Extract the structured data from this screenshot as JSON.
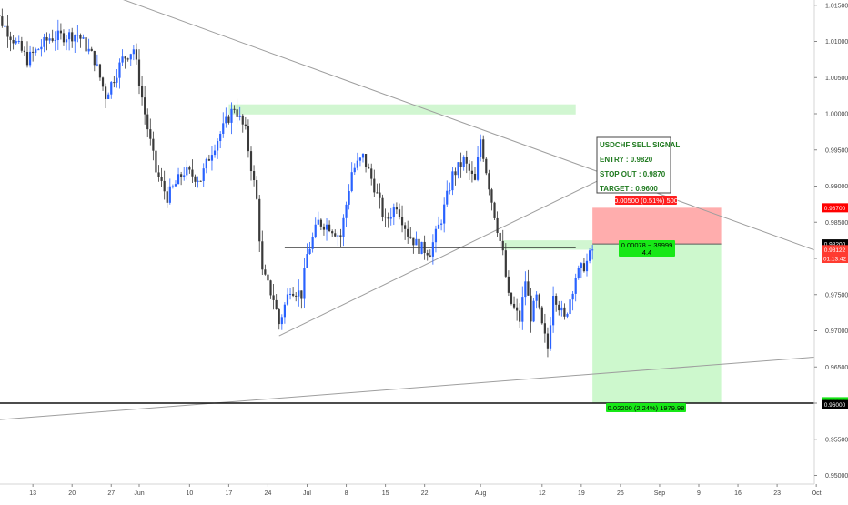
{
  "chart_data": {
    "type": "candlestick",
    "symbol": "USDCHF",
    "x_tick_labels": [
      "13",
      "20",
      "27",
      "Jun",
      "10",
      "17",
      "24",
      "Jul",
      "8",
      "15",
      "22",
      "Aug",
      "12",
      "19",
      "26",
      "Sep",
      "9",
      "16",
      "23",
      "Oct"
    ],
    "x_tick_days": [
      13,
      20,
      27,
      32,
      41,
      48,
      55,
      62,
      69,
      76,
      83,
      93,
      104,
      111,
      118,
      125,
      132,
      139,
      146,
      153
    ],
    "y_tick_labels": [
      "1.01500",
      "1.01000",
      "1.00500",
      "1.00000",
      "0.99500",
      "0.99000",
      "0.98500",
      "0.98000",
      "0.97500",
      "0.97000",
      "0.96500",
      "0.96000",
      "0.95500",
      "0.95000"
    ],
    "y_ticks": [
      1.015,
      1.01,
      1.005,
      1.0,
      0.995,
      0.99,
      0.985,
      0.98,
      0.975,
      0.97,
      0.965,
      0.96,
      0.955,
      0.95
    ],
    "ylim": [
      0.9488,
      1.0155
    ],
    "grid": false,
    "price_path": [
      {
        "day": 5,
        "price": 1.0155
      },
      {
        "day": 8,
        "price": 1.012
      },
      {
        "day": 12,
        "price": 1.0075
      },
      {
        "day": 16,
        "price": 1.0105
      },
      {
        "day": 21,
        "price": 1.011
      },
      {
        "day": 24,
        "price": 1.0075
      },
      {
        "day": 26,
        "price": 1.0025
      },
      {
        "day": 29,
        "price": 1.0075
      },
      {
        "day": 31,
        "price": 1.009
      },
      {
        "day": 33,
        "price": 1.0
      },
      {
        "day": 35,
        "price": 0.992
      },
      {
        "day": 37,
        "price": 0.9885
      },
      {
        "day": 40,
        "price": 0.992
      },
      {
        "day": 43,
        "price": 0.991
      },
      {
        "day": 45,
        "price": 0.995
      },
      {
        "day": 48,
        "price": 0.9995
      },
      {
        "day": 49,
        "price": 1.001
      },
      {
        "day": 51,
        "price": 0.9975
      },
      {
        "day": 53,
        "price": 0.988
      },
      {
        "day": 54,
        "price": 0.978
      },
      {
        "day": 56,
        "price": 0.9745
      },
      {
        "day": 57,
        "price": 0.971
      },
      {
        "day": 59,
        "price": 0.976
      },
      {
        "day": 61,
        "price": 0.975
      },
      {
        "day": 62,
        "price": 0.9805
      },
      {
        "day": 64,
        "price": 0.985
      },
      {
        "day": 66,
        "price": 0.9845
      },
      {
        "day": 68,
        "price": 0.983
      },
      {
        "day": 70,
        "price": 0.992
      },
      {
        "day": 72,
        "price": 0.994
      },
      {
        "day": 74,
        "price": 0.99
      },
      {
        "day": 76,
        "price": 0.985
      },
      {
        "day": 78,
        "price": 0.9875
      },
      {
        "day": 80,
        "price": 0.9835
      },
      {
        "day": 82,
        "price": 0.9815
      },
      {
        "day": 84,
        "price": 0.981
      },
      {
        "day": 86,
        "price": 0.9855
      },
      {
        "day": 88,
        "price": 0.9915
      },
      {
        "day": 90,
        "price": 0.9935
      },
      {
        "day": 92,
        "price": 0.9905
      },
      {
        "day": 93,
        "price": 0.9965
      },
      {
        "day": 95,
        "price": 0.988
      },
      {
        "day": 97,
        "price": 0.9805
      },
      {
        "day": 98,
        "price": 0.9745
      },
      {
        "day": 100,
        "price": 0.9715
      },
      {
        "day": 101,
        "price": 0.977
      },
      {
        "day": 102,
        "price": 0.972
      },
      {
        "day": 103,
        "price": 0.9745
      },
      {
        "day": 104,
        "price": 0.9705
      },
      {
        "day": 105,
        "price": 0.9675
      },
      {
        "day": 106,
        "price": 0.9755
      },
      {
        "day": 107,
        "price": 0.9735
      },
      {
        "day": 108,
        "price": 0.9715
      },
      {
        "day": 110,
        "price": 0.9775
      },
      {
        "day": 112,
        "price": 0.9795
      },
      {
        "day": 113,
        "price": 0.9812
      }
    ],
    "trendlines": [
      {
        "from": {
          "day": 23,
          "price": 1.0175
        },
        "to": {
          "day": 155,
          "price": 0.9805
        }
      },
      {
        "from": {
          "day": 57,
          "price": 0.9693
        },
        "to": {
          "day": 116,
          "price": 0.9915
        }
      },
      {
        "from": {
          "day": 0,
          "price": 0.9573
        },
        "to": {
          "day": 155,
          "price": 0.9665
        }
      }
    ],
    "horizontal_lines": [
      {
        "price": 0.9815,
        "from_day": 58,
        "to_day": 110
      },
      {
        "price": 0.96,
        "from_day": 0,
        "to_day": 155
      }
    ],
    "resistance_zones": [
      {
        "from_day": 48,
        "to_day": 110,
        "price_low": 0.9999,
        "price_high": 1.0013
      },
      {
        "from_day": 97,
        "to_day": 113,
        "price_low": 0.9812,
        "price_high": 0.9825
      }
    ],
    "position": {
      "side": "short",
      "entry": 0.982,
      "stop": 0.987,
      "target": 0.96,
      "from_day": 113,
      "to_day": 136,
      "risk_label": "0.00500 (0.51%) 500",
      "current_label_line1": "0.00078 ~ 39999",
      "current_label_line2": "4.4",
      "reward_label": "0.02200 (2.24%) 1979.98"
    },
    "signal_box": {
      "title": "USDCHF SELL SIGNAL",
      "entry": "ENTRY : 0.9820",
      "stop_out": "STOP OUT : 0.9870",
      "target": "TARGET : 0.9600"
    },
    "price_labels": [
      {
        "text": "0.98700",
        "price": 0.987,
        "bg": "#ff0000",
        "fg": "#ffffff"
      },
      {
        "text": "0.98200",
        "price": 0.982,
        "bg": "#000000",
        "fg": "#ffffff"
      },
      {
        "text": "0.98122",
        "price": 0.98122,
        "bg": "#ff3b30",
        "fg": "#ffffff"
      },
      {
        "text": "01:13:42",
        "price": 0.98,
        "bg": "#ff3b30",
        "fg": "#ffffff"
      },
      {
        "text": "0.96000",
        "price": 0.9602,
        "bg": "#12e412",
        "fg": "#000000"
      },
      {
        "text": "0.96000",
        "price": 0.9598,
        "bg": "#000000",
        "fg": "#ffffff"
      }
    ],
    "colors": {
      "up": "#2962ff",
      "down": "#3a3a3a",
      "stop_zone": "#ff9f9f",
      "target_zone": "#c8f7c8",
      "resistance_zone": "#c9f5c9",
      "signal_text": "#1f7a1f",
      "trendline": "#9e9e9e"
    }
  }
}
